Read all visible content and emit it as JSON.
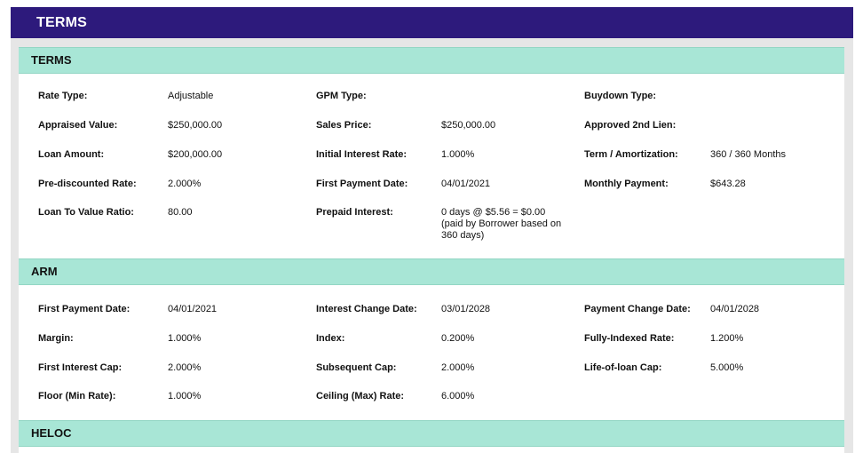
{
  "page_title": "TERMS",
  "colors": {
    "title_bar": "#2d1a7c",
    "section_header": "#a8e6d6"
  },
  "terms": {
    "header": "TERMS",
    "rows": [
      {
        "c1_label": "Rate Type:",
        "c1_value": "Adjustable",
        "c2_label": "GPM Type:",
        "c2_value": "",
        "c3_label": "Buydown Type:",
        "c3_value": ""
      },
      {
        "c1_label": "Appraised Value:",
        "c1_value": "$250,000.00",
        "c2_label": "Sales Price:",
        "c2_value": "$250,000.00",
        "c3_label": "Approved 2nd Lien:",
        "c3_value": ""
      },
      {
        "c1_label": "Loan Amount:",
        "c1_value": "$200,000.00",
        "c2_label": "Initial Interest Rate:",
        "c2_value": "1.000%",
        "c3_label": "Term / Amortization:",
        "c3_value": "360 / 360 Months"
      },
      {
        "c1_label": "Pre-discounted Rate:",
        "c1_value": "2.000%",
        "c2_label": "First Payment Date:",
        "c2_value": "04/01/2021",
        "c3_label": "Monthly Payment:",
        "c3_value": "$643.28"
      },
      {
        "c1_label": "Loan To Value Ratio:",
        "c1_value": "80.00",
        "c2_label": "Prepaid Interest:",
        "c2_value": "0 days @ $5.56 = $0.00 (paid by Borrower based on 360 days)",
        "c3_label": "",
        "c3_value": ""
      }
    ]
  },
  "arm": {
    "header": "ARM",
    "rows": [
      {
        "c1_label": "First Payment Date:",
        "c1_value": "04/01/2021",
        "c2_label": "Interest Change Date:",
        "c2_value": "03/01/2028",
        "c3_label": "Payment Change Date:",
        "c3_value": "04/01/2028"
      },
      {
        "c1_label": "Margin:",
        "c1_value": "1.000%",
        "c2_label": "Index:",
        "c2_value": "0.200%",
        "c3_label": "Fully-Indexed Rate:",
        "c3_value": "1.200%"
      },
      {
        "c1_label": "First Interest Cap:",
        "c1_value": "2.000%",
        "c2_label": "Subsequent Cap:",
        "c2_value": "2.000%",
        "c3_label": "Life-of-loan Cap:",
        "c3_value": "5.000%"
      },
      {
        "c1_label": "Floor (Min Rate):",
        "c1_value": "1.000%",
        "c2_label": "Ceiling (Max) Rate:",
        "c2_value": "6.000%",
        "c3_label": "",
        "c3_value": ""
      }
    ]
  },
  "heloc": {
    "header": "HELOC"
  }
}
